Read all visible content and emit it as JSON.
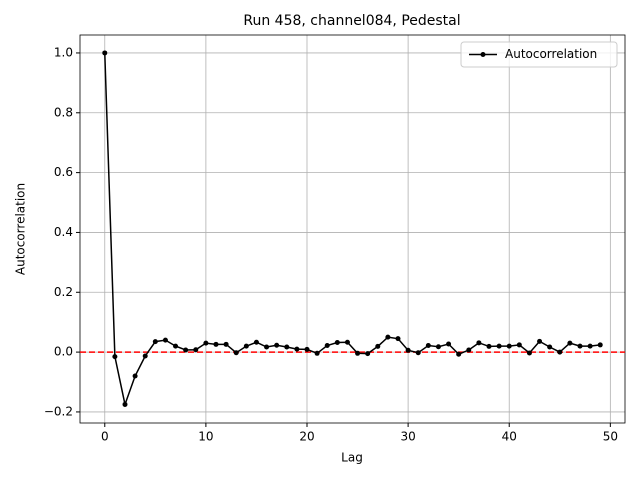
{
  "chart_data": {
    "type": "line",
    "title": "Run 458, channel084, Pedestal",
    "xlabel": "Lag",
    "ylabel": "Autocorrelation",
    "x": [
      0,
      1,
      2,
      3,
      4,
      5,
      6,
      7,
      8,
      9,
      10,
      11,
      12,
      13,
      14,
      15,
      16,
      17,
      18,
      19,
      20,
      21,
      22,
      23,
      24,
      25,
      26,
      27,
      28,
      29,
      30,
      31,
      32,
      33,
      34,
      35,
      36,
      37,
      38,
      39,
      40,
      41,
      42,
      43,
      44,
      45,
      46,
      47,
      48,
      49
    ],
    "series": [
      {
        "name": "Autocorrelation",
        "color": "#000000",
        "values": [
          1.0,
          -0.015,
          -0.175,
          -0.08,
          -0.013,
          0.035,
          0.04,
          0.02,
          0.007,
          0.008,
          0.03,
          0.026,
          0.026,
          -0.002,
          0.02,
          0.033,
          0.017,
          0.023,
          0.017,
          0.01,
          0.009,
          -0.004,
          0.022,
          0.032,
          0.033,
          -0.004,
          -0.005,
          0.019,
          0.05,
          0.045,
          0.006,
          -0.002,
          0.022,
          0.018,
          0.027,
          -0.007,
          0.007,
          0.031,
          0.019,
          0.02,
          0.02,
          0.024,
          -0.003,
          0.036,
          0.017,
          0.0,
          0.03,
          0.02,
          0.02,
          0.024
        ]
      }
    ],
    "hline": 0,
    "hline_color": "#ff0000",
    "xlim": [
      -2.45,
      51.45
    ],
    "xticks": [
      0,
      10,
      20,
      30,
      40,
      50
    ],
    "ylim": [
      -0.237,
      1.06
    ],
    "yticks": [
      {
        "value": -0.2,
        "label": "−0.2"
      },
      {
        "value": 0.0,
        "label": "0.0"
      },
      0.2,
      0.4,
      0.6,
      0.8,
      {
        "value": 1.0,
        "label": "1.0"
      }
    ],
    "grid": true,
    "legend": "upper right"
  }
}
